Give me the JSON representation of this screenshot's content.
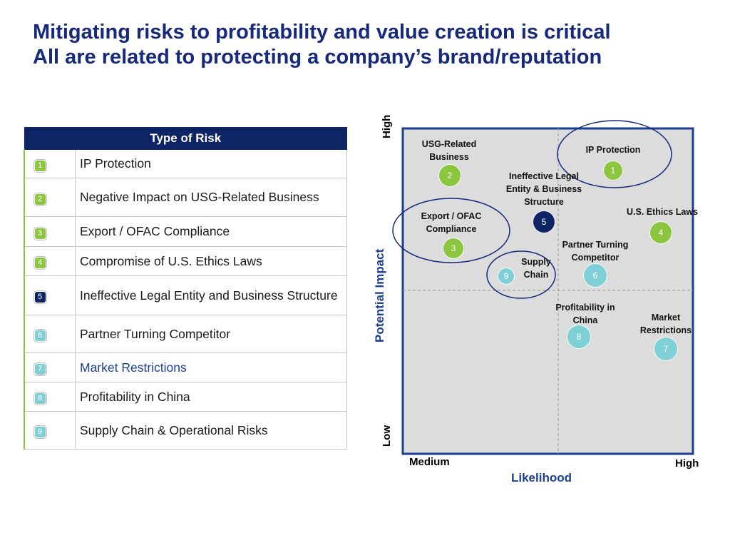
{
  "title": {
    "line1": "Mitigating risks to profitability and value creation is critical",
    "line2": "All are related to protecting a company’s brand/reputation"
  },
  "table": {
    "header": "Type of Risk",
    "rows": [
      {
        "num": "1",
        "label": "IP Protection",
        "color": "#8cc63f"
      },
      {
        "num": "2",
        "label": "Negative Impact on USG-Related Business",
        "color": "#8cc63f"
      },
      {
        "num": "3",
        "label": "Export / OFAC Compliance",
        "color": "#8cc63f"
      },
      {
        "num": "4",
        "label": "Compromise of U.S. Ethics Laws",
        "color": "#8cc63f"
      },
      {
        "num": "5",
        "label": "Ineffective Legal Entity and Business Structure",
        "color": "#0e2565"
      },
      {
        "num": "6",
        "label": "Partner Turning Competitor",
        "color": "#7fcfd6"
      },
      {
        "num": "7",
        "label": "Market Restrictions",
        "color": "#7fcfd6"
      },
      {
        "num": "8",
        "label": "Profitability in China",
        "color": "#7fcfd6"
      },
      {
        "num": "9",
        "label": "Supply Chain & Operational Risks",
        "color": "#7fcfd6"
      }
    ]
  },
  "matrix": {
    "y_axis_title": "Potential Impact",
    "y_high": "High",
    "y_low": "Low",
    "x_axis_title": "Likelihood",
    "x_low": "Medium",
    "x_high": "High",
    "items": [
      {
        "num": "1",
        "label": "IP Protection",
        "color": "#8cc63f"
      },
      {
        "num": "2",
        "label": "USG-Related Business",
        "color": "#8cc63f"
      },
      {
        "num": "3",
        "label": "Export / OFAC Compliance",
        "color": "#8cc63f"
      },
      {
        "num": "4",
        "label": "U.S. Ethics Laws",
        "color": "#8cc63f"
      },
      {
        "num": "5",
        "label": "Ineffective Legal Entity & Business Structure",
        "color": "#0e2565"
      },
      {
        "num": "6",
        "label": "Partner Turning Competitor",
        "color": "#7fcfd6"
      },
      {
        "num": "7",
        "label": "Market Restrictions",
        "color": "#7fcfd6"
      },
      {
        "num": "8",
        "label": "Profitability in China",
        "color": "#7fcfd6"
      },
      {
        "num": "9",
        "label": "Supply Chain",
        "color": "#7fcfd6"
      }
    ]
  }
}
